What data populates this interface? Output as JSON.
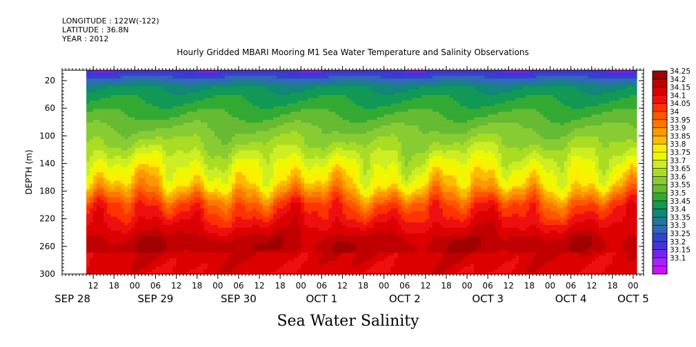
{
  "header": {
    "longitude": "LONGITUDE : 122W(-122)",
    "latitude": "LATITUDE : 36.8N",
    "year": "YEAR : 2012"
  },
  "title": "Hourly Gridded MBARI Mooring M1 Sea Water Temperature and Salinity Observations",
  "bottom_title": "Sea Water Salinity",
  "chart_data": {
    "type": "heatmap",
    "title": "Hourly Gridded MBARI Mooring M1 Sea Water Temperature and Salinity Observations",
    "variable": "Sea Water Salinity",
    "ylabel": "DEPTH (m)",
    "ylim": [
      300,
      5
    ],
    "yticks": [
      20,
      60,
      100,
      140,
      180,
      220,
      260,
      300
    ],
    "xlim_hours": [
      -21,
      147
    ],
    "xticks_hours": [
      -12,
      -6,
      0,
      6,
      12,
      18,
      24,
      30,
      36,
      42,
      48,
      54,
      60,
      66,
      72,
      78,
      84,
      90,
      96,
      102,
      108,
      114,
      120,
      126,
      132,
      138,
      144
    ],
    "xtick_labels": [
      "12",
      "18",
      "00",
      "06",
      "12",
      "18",
      "00",
      "06",
      "12",
      "18",
      "00",
      "06",
      "12",
      "18",
      "00",
      "06",
      "12",
      "18",
      "00",
      "06",
      "12",
      "18",
      "00",
      "06",
      "12",
      "18",
      "00"
    ],
    "date_labels": [
      {
        "label": "SEP 28",
        "hour": -18
      },
      {
        "label": "SEP 29",
        "hour": 6
      },
      {
        "label": "SEP 30",
        "hour": 30
      },
      {
        "label": "OCT  1",
        "hour": 54
      },
      {
        "label": "OCT  2",
        "hour": 78
      },
      {
        "label": "OCT  3",
        "hour": 102
      },
      {
        "label": "OCT  4",
        "hour": 126
      },
      {
        "label": "OCT  5",
        "hour": 144
      }
    ],
    "data_time_range_hours": [
      -14,
      145
    ],
    "colorbar": {
      "levels": [
        "34.25",
        "34.2",
        "34.15",
        "34.1",
        "34.05",
        "34",
        "33.95",
        "33.9",
        "33.85",
        "33.8",
        "33.75",
        "33.7",
        "33.65",
        "33.6",
        "33.55",
        "33.5",
        "33.45",
        "33.4",
        "33.35",
        "33.3",
        "33.25",
        "33.2",
        "33.15",
        "33.1"
      ],
      "colors": [
        "#a00000",
        "#c00000",
        "#dd0000",
        "#ee1010",
        "#ff3300",
        "#ff5500",
        "#ff7700",
        "#ff9900",
        "#ffbb00",
        "#ffee00",
        "#eef800",
        "#ccee22",
        "#aadd22",
        "#88cc33",
        "#66bb33",
        "#33aa33",
        "#119955",
        "#118877",
        "#227799",
        "#3366bb",
        "#3344cc",
        "#4433dd",
        "#7722ee",
        "#aa22ff",
        "#cc11ff"
      ]
    },
    "profile_mean": [
      {
        "depth": 5,
        "value": 33.2
      },
      {
        "depth": 15,
        "value": 33.3
      },
      {
        "depth": 30,
        "value": 33.45
      },
      {
        "depth": 50,
        "value": 33.5
      },
      {
        "depth": 70,
        "value": 33.55
      },
      {
        "depth": 90,
        "value": 33.6
      },
      {
        "depth": 110,
        "value": 33.65
      },
      {
        "depth": 125,
        "value": 33.7
      },
      {
        "depth": 140,
        "value": 33.75
      },
      {
        "depth": 155,
        "value": 33.8
      },
      {
        "depth": 170,
        "value": 33.85
      },
      {
        "depth": 185,
        "value": 33.95
      },
      {
        "depth": 200,
        "value": 34.05
      },
      {
        "depth": 215,
        "value": 34.1
      },
      {
        "depth": 230,
        "value": 34.15
      },
      {
        "depth": 245,
        "value": 34.2
      },
      {
        "depth": 260,
        "value": 34.22
      },
      {
        "depth": 280,
        "value": 34.2
      },
      {
        "depth": 300,
        "value": 34.18
      }
    ]
  }
}
